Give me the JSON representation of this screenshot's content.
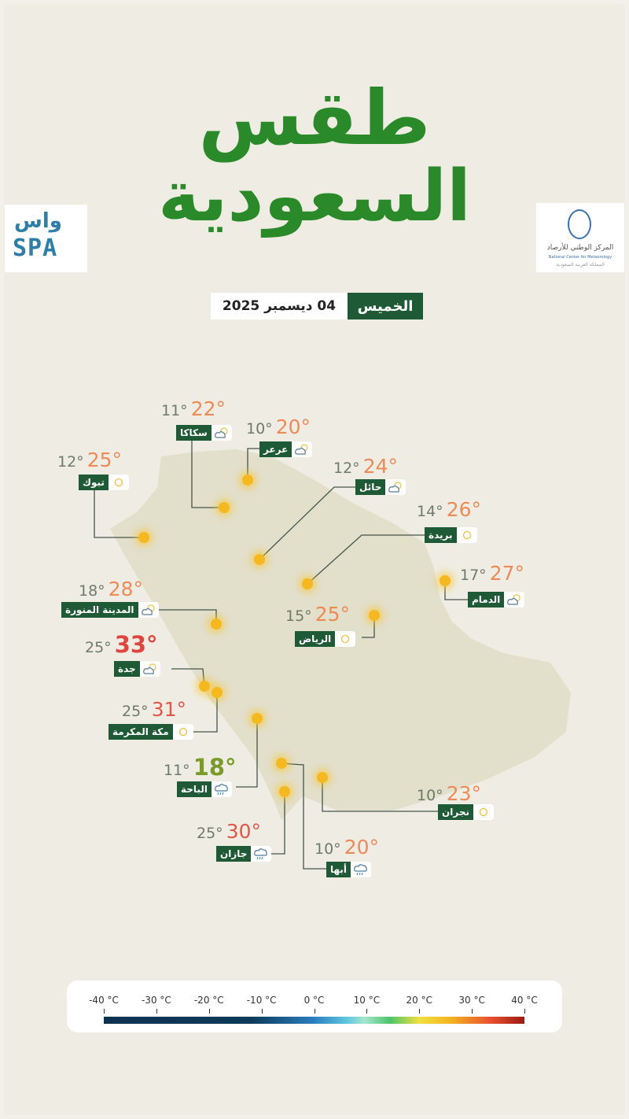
{
  "title": {
    "line1": "طقس",
    "line2": "السعودية"
  },
  "logos": {
    "spa": "SPA",
    "spa_ar": "واس",
    "ncm_ar": "المركز الوطني للأرصاد",
    "ncm_en": "National Center for Meteorology",
    "ncm_sub": "المملكة العربية السعودية"
  },
  "date": {
    "weekday": "الخميس",
    "date": "04 ديسمبر 2025"
  },
  "colors": {
    "brand_green": "#1e5a36",
    "title_green": "#2a8a2a",
    "max_orange": "#ec8a58",
    "max_red": "#e0443c",
    "max_green": "#7a9a2a"
  },
  "cities": [
    {
      "name": "سكاكا",
      "min": "11°",
      "max": "22°",
      "icon": "partly-cloudy",
      "color": "#ec8a58"
    },
    {
      "name": "عرعر",
      "min": "10°",
      "max": "20°",
      "icon": "partly-cloudy",
      "color": "#ec8a58"
    },
    {
      "name": "تبوك",
      "min": "12°",
      "max": "25°",
      "icon": "sunny",
      "color": "#ec8a58"
    },
    {
      "name": "حائل",
      "min": "12°",
      "max": "24°",
      "icon": "partly-cloudy",
      "color": "#ec8a58"
    },
    {
      "name": "بريدة",
      "min": "14°",
      "max": "26°",
      "icon": "sunny",
      "color": "#ec8a58"
    },
    {
      "name": "الدمام",
      "min": "17°",
      "max": "27°",
      "icon": "partly-cloudy",
      "color": "#ec8a58"
    },
    {
      "name": "الرياض",
      "min": "15°",
      "max": "25°",
      "icon": "sunny",
      "color": "#ec8a58"
    },
    {
      "name": "المدينة المنورة",
      "min": "18°",
      "max": "28°",
      "icon": "partly-cloudy",
      "color": "#ec8a58"
    },
    {
      "name": "جدة",
      "min": "25°",
      "max": "33°",
      "icon": "partly-cloudy",
      "color": "#e0443c"
    },
    {
      "name": "مكة المكرمة",
      "min": "25°",
      "max": "31°",
      "icon": "sunny",
      "color": "#e0564a"
    },
    {
      "name": "الباحة",
      "min": "11°",
      "max": "18°",
      "icon": "rain",
      "color": "#7a9a2a"
    },
    {
      "name": "نجران",
      "min": "10°",
      "max": "23°",
      "icon": "sunny",
      "color": "#ec8a58"
    },
    {
      "name": "جازان",
      "min": "25°",
      "max": "30°",
      "icon": "rain",
      "color": "#e0564a"
    },
    {
      "name": "أبها",
      "min": "10°",
      "max": "20°",
      "icon": "rain",
      "color": "#ec8a58"
    }
  ],
  "legend": {
    "labels": [
      "-40 °C",
      "-30 °C",
      "-20 °C",
      "-10 °C",
      "0 °C",
      "10 °C",
      "20 °C",
      "30 °C",
      "40 °C"
    ]
  }
}
